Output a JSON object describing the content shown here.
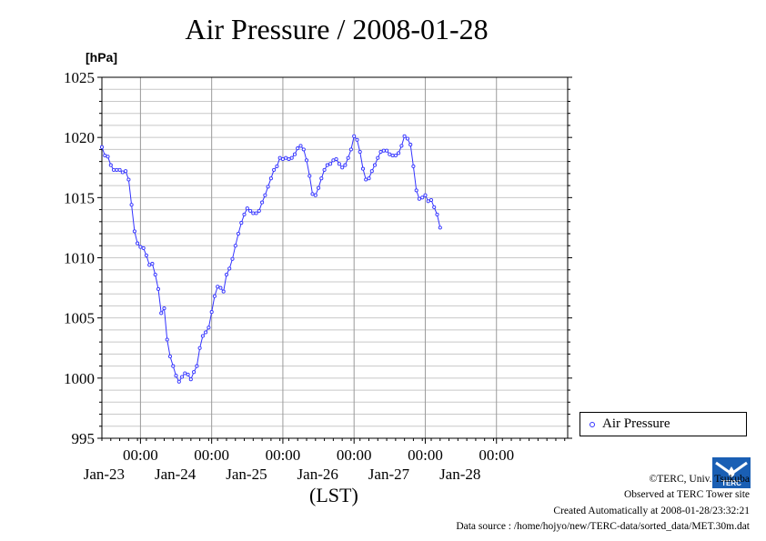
{
  "title": "Air Pressure / 2008-01-28",
  "unit_label": "[hPa]",
  "x_unit_label": "(LST)",
  "legend": {
    "label": "Air Pressure",
    "color": "#3333ff"
  },
  "credits": {
    "line1": "©TERC, Univ. Tsukuba",
    "line2": "Observed at TERC Tower site",
    "line3": "Created Automatically at 2008-01-28/23:32:21",
    "line4": "Data source : /home/hojyo/new/TERC-data/sorted_data/MET.30m.dat"
  },
  "logo_text": "TERC",
  "chart_data": {
    "type": "line",
    "title": "Air Pressure / 2008-01-28",
    "ylabel": "[hPa]",
    "xlabel": "(LST)",
    "ylim": [
      995,
      1025
    ],
    "yticks": [
      995,
      1000,
      1005,
      1010,
      1015,
      1020,
      1025
    ],
    "xlim": [
      "2008-01-22 11:00",
      "2008-01-29 00:00"
    ],
    "x_ticks": [
      {
        "time": "2008-01-23 00:00",
        "label": "00:00",
        "day": "Jan-23"
      },
      {
        "time": "2008-01-24 00:00",
        "label": "00:00",
        "day": "Jan-24"
      },
      {
        "time": "2008-01-25 00:00",
        "label": "00:00",
        "day": "Jan-25"
      },
      {
        "time": "2008-01-26 00:00",
        "label": "00:00",
        "day": "Jan-26"
      },
      {
        "time": "2008-01-27 00:00",
        "label": "00:00",
        "day": "Jan-27"
      },
      {
        "time": "2008-01-28 00:00",
        "label": "00:00",
        "day": "Jan-28"
      }
    ],
    "grid": true,
    "legend_position": "right",
    "series": [
      {
        "name": "Air Pressure",
        "color": "#3333ff",
        "points": [
          [
            "2008-01-22 11:00",
            1019.2
          ],
          [
            "2008-01-22 12:00",
            1018.5
          ],
          [
            "2008-01-22 13:00",
            1018.4
          ],
          [
            "2008-01-22 14:00",
            1017.7
          ],
          [
            "2008-01-22 15:00",
            1017.3
          ],
          [
            "2008-01-22 16:00",
            1017.3
          ],
          [
            "2008-01-22 17:00",
            1017.3
          ],
          [
            "2008-01-22 18:00",
            1017.1
          ],
          [
            "2008-01-22 19:00",
            1017.2
          ],
          [
            "2008-01-22 20:00",
            1016.5
          ],
          [
            "2008-01-22 21:00",
            1014.4
          ],
          [
            "2008-01-22 22:00",
            1012.2
          ],
          [
            "2008-01-22 23:00",
            1011.2
          ],
          [
            "2008-01-23 00:00",
            1010.9
          ],
          [
            "2008-01-23 01:00",
            1010.8
          ],
          [
            "2008-01-23 02:00",
            1010.2
          ],
          [
            "2008-01-23 03:00",
            1009.4
          ],
          [
            "2008-01-23 04:00",
            1009.5
          ],
          [
            "2008-01-23 05:00",
            1008.6
          ],
          [
            "2008-01-23 06:00",
            1007.4
          ],
          [
            "2008-01-23 07:00",
            1005.4
          ],
          [
            "2008-01-23 08:00",
            1005.8
          ],
          [
            "2008-01-23 09:00",
            1003.2
          ],
          [
            "2008-01-23 10:00",
            1001.8
          ],
          [
            "2008-01-23 11:00",
            1001.0
          ],
          [
            "2008-01-23 12:00",
            1000.2
          ],
          [
            "2008-01-23 13:00",
            999.7
          ],
          [
            "2008-01-23 14:00",
            1000.1
          ],
          [
            "2008-01-23 15:00",
            1000.4
          ],
          [
            "2008-01-23 16:00",
            1000.3
          ],
          [
            "2008-01-23 17:00",
            999.9
          ],
          [
            "2008-01-23 18:00",
            1000.5
          ],
          [
            "2008-01-23 19:00",
            1001.0
          ],
          [
            "2008-01-23 20:00",
            1002.5
          ],
          [
            "2008-01-23 21:00",
            1003.5
          ],
          [
            "2008-01-23 22:00",
            1003.8
          ],
          [
            "2008-01-23 23:00",
            1004.2
          ],
          [
            "2008-01-24 00:00",
            1005.5
          ],
          [
            "2008-01-24 01:00",
            1006.8
          ],
          [
            "2008-01-24 02:00",
            1007.6
          ],
          [
            "2008-01-24 03:00",
            1007.5
          ],
          [
            "2008-01-24 04:00",
            1007.2
          ],
          [
            "2008-01-24 05:00",
            1008.6
          ],
          [
            "2008-01-24 06:00",
            1009.1
          ],
          [
            "2008-01-24 07:00",
            1009.9
          ],
          [
            "2008-01-24 08:00",
            1011.0
          ],
          [
            "2008-01-24 09:00",
            1012.0
          ],
          [
            "2008-01-24 10:00",
            1012.9
          ],
          [
            "2008-01-24 11:00",
            1013.6
          ],
          [
            "2008-01-24 12:00",
            1014.1
          ],
          [
            "2008-01-24 13:00",
            1013.9
          ],
          [
            "2008-01-24 14:00",
            1013.7
          ],
          [
            "2008-01-24 15:00",
            1013.7
          ],
          [
            "2008-01-24 16:00",
            1013.9
          ],
          [
            "2008-01-24 17:00",
            1014.6
          ],
          [
            "2008-01-24 18:00",
            1015.2
          ],
          [
            "2008-01-24 19:00",
            1015.9
          ],
          [
            "2008-01-24 20:00",
            1016.6
          ],
          [
            "2008-01-24 21:00",
            1017.3
          ],
          [
            "2008-01-24 22:00",
            1017.6
          ],
          [
            "2008-01-24 23:00",
            1018.3
          ],
          [
            "2008-01-25 00:00",
            1018.2
          ],
          [
            "2008-01-25 01:00",
            1018.3
          ],
          [
            "2008-01-25 02:00",
            1018.2
          ],
          [
            "2008-01-25 03:00",
            1018.3
          ],
          [
            "2008-01-25 04:00",
            1018.6
          ],
          [
            "2008-01-25 05:00",
            1019.1
          ],
          [
            "2008-01-25 06:00",
            1019.3
          ],
          [
            "2008-01-25 07:00",
            1019.0
          ],
          [
            "2008-01-25 08:00",
            1018.1
          ],
          [
            "2008-01-25 09:00",
            1016.8
          ],
          [
            "2008-01-25 10:00",
            1015.3
          ],
          [
            "2008-01-25 11:00",
            1015.2
          ],
          [
            "2008-01-25 12:00",
            1015.8
          ],
          [
            "2008-01-25 13:00",
            1016.6
          ],
          [
            "2008-01-25 14:00",
            1017.3
          ],
          [
            "2008-01-25 15:00",
            1017.7
          ],
          [
            "2008-01-25 16:00",
            1017.8
          ],
          [
            "2008-01-25 17:00",
            1018.1
          ],
          [
            "2008-01-25 18:00",
            1018.2
          ],
          [
            "2008-01-25 19:00",
            1017.8
          ],
          [
            "2008-01-25 20:00",
            1017.5
          ],
          [
            "2008-01-25 21:00",
            1017.7
          ],
          [
            "2008-01-25 22:00",
            1018.3
          ],
          [
            "2008-01-25 23:00",
            1019.0
          ],
          [
            "2008-01-26 00:00",
            1020.1
          ],
          [
            "2008-01-26 01:00",
            1019.8
          ],
          [
            "2008-01-26 02:00",
            1018.8
          ],
          [
            "2008-01-26 03:00",
            1017.4
          ],
          [
            "2008-01-26 04:00",
            1016.5
          ],
          [
            "2008-01-26 05:00",
            1016.6
          ],
          [
            "2008-01-26 06:00",
            1017.2
          ],
          [
            "2008-01-26 07:00",
            1017.7
          ],
          [
            "2008-01-26 08:00",
            1018.3
          ],
          [
            "2008-01-26 09:00",
            1018.8
          ],
          [
            "2008-01-26 10:00",
            1018.9
          ],
          [
            "2008-01-26 11:00",
            1018.9
          ],
          [
            "2008-01-26 12:00",
            1018.6
          ],
          [
            "2008-01-26 13:00",
            1018.5
          ],
          [
            "2008-01-26 14:00",
            1018.5
          ],
          [
            "2008-01-26 15:00",
            1018.7
          ],
          [
            "2008-01-26 16:00",
            1019.3
          ],
          [
            "2008-01-26 17:00",
            1020.1
          ],
          [
            "2008-01-26 18:00",
            1019.9
          ],
          [
            "2008-01-26 19:00",
            1019.4
          ],
          [
            "2008-01-26 20:00",
            1017.6
          ],
          [
            "2008-01-26 21:00",
            1015.6
          ],
          [
            "2008-01-26 22:00",
            1014.9
          ],
          [
            "2008-01-26 23:00",
            1015.0
          ],
          [
            "2008-01-27 00:00",
            1015.2
          ],
          [
            "2008-01-27 01:00",
            1014.7
          ],
          [
            "2008-01-27 02:00",
            1014.8
          ],
          [
            "2008-01-27 03:00",
            1014.2
          ],
          [
            "2008-01-27 04:00",
            1013.6
          ],
          [
            "2008-01-27 05:00",
            1012.5
          ]
        ]
      }
    ]
  }
}
